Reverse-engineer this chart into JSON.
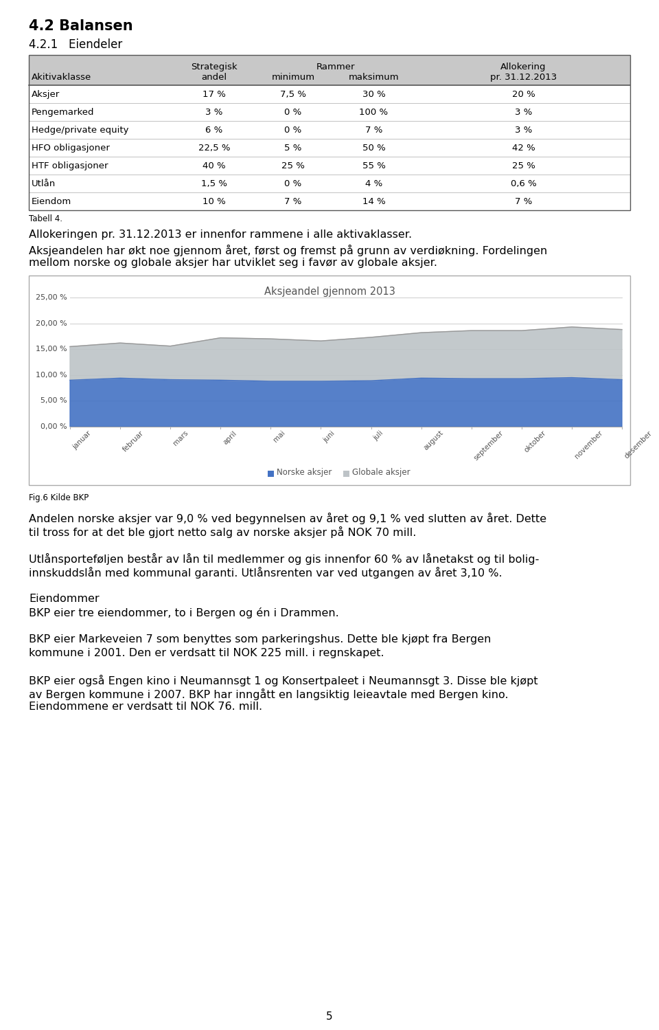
{
  "title1": "4.2 Balansen",
  "title2": "4.2.1   Eiendeler",
  "table_col_headers_row1": [
    "",
    "Strategisk",
    "Rammer",
    "",
    "Allokering"
  ],
  "table_col_headers_row2": [
    "Akitivaklasse",
    "andel",
    "minimum",
    "maksimum",
    "pr. 31.12.2013"
  ],
  "table_rows": [
    [
      "Aksjer",
      "17 %",
      "7,5 %",
      "30 %",
      "20 %"
    ],
    [
      "Pengemarked",
      "3 %",
      "0 %",
      "100 %",
      "3 %"
    ],
    [
      "Hedge/private equity",
      "6 %",
      "0 %",
      "7 %",
      "3 %"
    ],
    [
      "HFO obligasjoner",
      "22,5 %",
      "5 %",
      "50 %",
      "42 %"
    ],
    [
      "HTF obligasjoner",
      "40 %",
      "25 %",
      "55 %",
      "25 %"
    ],
    [
      "Utlån",
      "1,5 %",
      "0 %",
      "4 %",
      "0,6 %"
    ],
    [
      "Eiendom",
      "10 %",
      "7 %",
      "14 %",
      "7 %"
    ]
  ],
  "tabell_label": "Tabell 4.",
  "para1": "Allokeringen pr. 31.12.2013 er innenfor rammene i alle aktivaklasser.",
  "para2_line1": "Aksjeandelen har økt noe gjennom året, først og fremst på grunn av verdiøkning. Fordelingen",
  "para2_line2": "mellom norske og globale aksjer har utviklet seg i favør av globale aksjer.",
  "chart_title": "Aksjeandel gjennom 2013",
  "months": [
    "januar",
    "februar",
    "mars",
    "april",
    "mai",
    "juni",
    "juli",
    "august",
    "september",
    "oktober",
    "november",
    "desember"
  ],
  "norske_aksjer": [
    9.0,
    9.4,
    9.1,
    9.0,
    8.8,
    8.8,
    8.9,
    9.4,
    9.3,
    9.3,
    9.5,
    9.1
  ],
  "globale_aksjer": [
    6.5,
    6.8,
    6.5,
    8.2,
    8.2,
    7.8,
    8.4,
    8.8,
    9.3,
    9.3,
    9.8,
    9.7
  ],
  "norske_color": "#4472C4",
  "globale_color": "#BDC3C7",
  "chart_yticks": [
    0,
    5,
    10,
    15,
    20,
    25
  ],
  "chart_ytick_labels": [
    "0,00 %",
    "5,00 %",
    "10,00 %",
    "15,00 %",
    "20,00 %",
    "25,00 %"
  ],
  "fig6_label": "Fig.6 Kilde BKP",
  "para3_line1": "Andelen norske aksjer var 9,0 % ved begynnelsen av året og 9,1 % ved slutten av året. Dette",
  "para3_line2": "til tross for at det ble gjort netto salg av norske aksjer på NOK 70 mill.",
  "para4_line1": "Utlånsporteføljen består av lån til medlemmer og gis innenfor 60 % av lånetakst og til bolig-",
  "para4_line2": "innskuddslån med kommunal garanti. Utlånsrenten var ved utgangen av året 3,10 %.",
  "para5_header": "Eiendommer",
  "para5_body": "BKP eier tre eiendommer, to i Bergen og én i Drammen.",
  "para6_line1": "BKP eier Markeveien 7 som benyttes som parkeringshus. Dette ble kjøpt fra Bergen",
  "para6_line2": "kommune i 2001. Den er verdsatt til NOK 225 mill. i regnskapet.",
  "para7_line1": "BKP eier også Engen kino i Neumannsgt 1 og Konsertpaleet i Neumannsgt 3. Disse ble kjøpt",
  "para7_line2": "av Bergen kommune i 2007. BKP har inngått en langsiktig leieavtale med Bergen kino.",
  "para7_line3": "Eiendommene er verdsatt til NOK 76. mill.",
  "page_number": "5",
  "bg_color": "#ffffff",
  "table_header_bg": "#C8C8C8",
  "table_border_color": "#555555",
  "text_color": "#000000",
  "grey_text": "#666666"
}
